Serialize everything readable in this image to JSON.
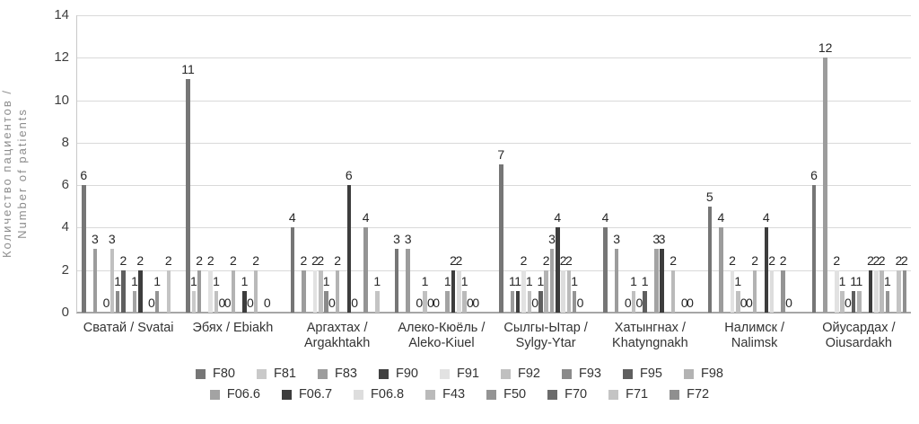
{
  "chart_data": {
    "type": "bar",
    "title": "",
    "ylabel_line1": "Количество пациентов /",
    "ylabel_line2": "Number of patients",
    "xlabel": "",
    "ylim": [
      0,
      14
    ],
    "yticks": [
      0,
      2,
      4,
      6,
      8,
      10,
      12,
      14
    ],
    "grid": "horizontal",
    "legend_position": "bottom, two centered rows",
    "legend_rows": [
      [
        "F80",
        "F81",
        "F83",
        "F90",
        "F91",
        "F92",
        "F93",
        "F95",
        "F98"
      ],
      [
        "F06.6",
        "F06.7",
        "F06.8",
        "F43",
        "F50",
        "F70",
        "F71",
        "F72"
      ]
    ],
    "categories": [
      {
        "label": "Сватай / Svatai",
        "lines": [
          "Сватай / Svatai"
        ]
      },
      {
        "label": "Эбях / Ebiakh",
        "lines": [
          "Эбях / Ebiakh"
        ]
      },
      {
        "label": "Аргахтах / Argakhtakh",
        "lines": [
          "Аргахтах /",
          "Argakhtakh"
        ]
      },
      {
        "label": "Алеко-Кюёль / Aleko-Kiuel",
        "lines": [
          "Алеко-Кюёль /",
          "Aleko-Kiuel"
        ]
      },
      {
        "label": "Сылгы-Ытар / Sylgy-Ytar",
        "lines": [
          "Сылгы-Ытар /",
          "Sylgy-Ytar"
        ]
      },
      {
        "label": "Хатынгнах / Khatyngnakh",
        "lines": [
          "Хатынгнах /",
          "Khatyngnakh"
        ]
      },
      {
        "label": "Налимск / Nalimsk",
        "lines": [
          "Налимск /",
          "Nalimsk"
        ]
      },
      {
        "label": "Ойусардах / Oiusardakh",
        "lines": [
          "Ойусардах /",
          "Oiusardakh"
        ]
      }
    ],
    "series": [
      {
        "name": "F80",
        "color": "#767676",
        "values": [
          6,
          11,
          4,
          3,
          7,
          4,
          5,
          6
        ]
      },
      {
        "name": "F81",
        "color": "#c9c9c9",
        "values": [
          null,
          1,
          null,
          null,
          null,
          null,
          null,
          null
        ]
      },
      {
        "name": "F83",
        "color": "#9c9c9c",
        "values": [
          3,
          2,
          2,
          3,
          1,
          3,
          4,
          12
        ]
      },
      {
        "name": "F90",
        "color": "#404040",
        "values": [
          null,
          null,
          null,
          null,
          1,
          null,
          null,
          null
        ]
      },
      {
        "name": "F91",
        "color": "#e2e2e2",
        "values": [
          0,
          2,
          2,
          0,
          2,
          0,
          2,
          2
        ]
      },
      {
        "name": "F92",
        "color": "#c0c0c0",
        "values": [
          3,
          1,
          2,
          1,
          1,
          1,
          1,
          1
        ]
      },
      {
        "name": "F93",
        "color": "#8a8a8a",
        "values": [
          1,
          0,
          1,
          0,
          0,
          0,
          0,
          0
        ]
      },
      {
        "name": "F95",
        "color": "#5f5f5f",
        "values": [
          2,
          0,
          0,
          0,
          1,
          1,
          0,
          1
        ]
      },
      {
        "name": "F98",
        "color": "#b3b3b3",
        "values": [
          null,
          2,
          2,
          null,
          2,
          null,
          2,
          1
        ]
      },
      {
        "name": "F06.6",
        "color": "#a3a3a3",
        "values": [
          1,
          null,
          null,
          1,
          3,
          3,
          null,
          null
        ]
      },
      {
        "name": "F06.7",
        "color": "#3d3d3d",
        "values": [
          2,
          1,
          6,
          2,
          4,
          3,
          4,
          2
        ]
      },
      {
        "name": "F06.8",
        "color": "#dddddd",
        "values": [
          null,
          0,
          0,
          2,
          2,
          null,
          2,
          2
        ]
      },
      {
        "name": "F43",
        "color": "#bababa",
        "values": [
          0,
          2,
          null,
          1,
          2,
          2,
          null,
          2
        ]
      },
      {
        "name": "F50",
        "color": "#949494",
        "values": [
          1,
          null,
          4,
          0,
          1,
          null,
          2,
          1
        ]
      },
      {
        "name": "F70",
        "color": "#6b6b6b",
        "values": [
          null,
          0,
          null,
          0,
          0,
          0,
          0,
          null
        ]
      },
      {
        "name": "F71",
        "color": "#c4c4c4",
        "values": [
          2,
          null,
          1,
          null,
          null,
          0,
          null,
          2
        ]
      },
      {
        "name": "F72",
        "color": "#8f8f8f",
        "values": [
          null,
          null,
          null,
          null,
          null,
          null,
          null,
          2
        ]
      }
    ]
  }
}
